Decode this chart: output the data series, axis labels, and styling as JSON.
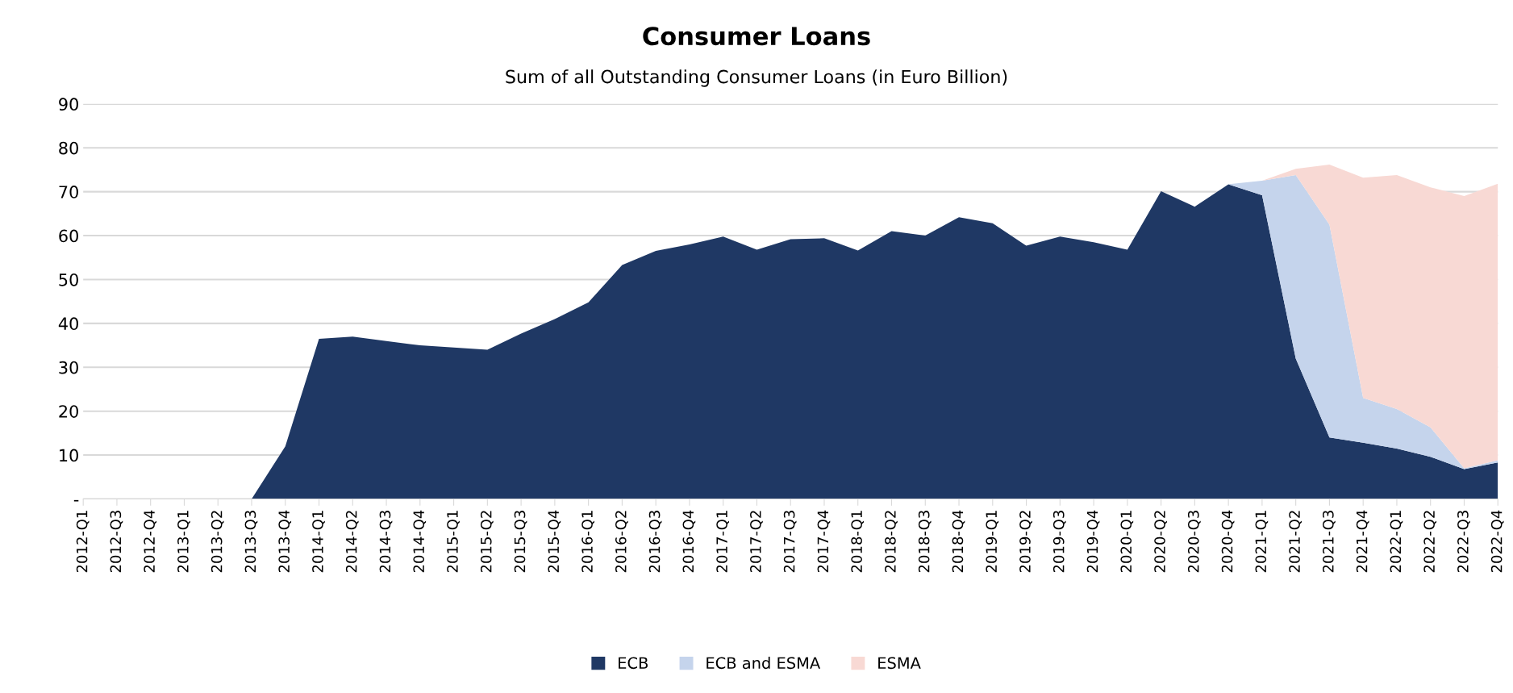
{
  "chart_data": {
    "type": "area",
    "stacked": true,
    "title": "Consumer Loans",
    "subtitle": "Sum of all Outstanding Consumer Loans (in Euro Billion)",
    "categories": [
      "2012-Q1",
      "2012-Q3",
      "2012-Q4",
      "2013-Q1",
      "2013-Q2",
      "2013-Q3",
      "2013-Q4",
      "2014-Q1",
      "2014-Q2",
      "2014-Q3",
      "2014-Q4",
      "2015-Q1",
      "2015-Q2",
      "2015-Q3",
      "2015-Q4",
      "2016-Q1",
      "2016-Q2",
      "2016-Q3",
      "2016-Q4",
      "2017-Q1",
      "2017-Q2",
      "2017-Q3",
      "2017-Q4",
      "2018-Q1",
      "2018-Q2",
      "2018-Q3",
      "2018-Q4",
      "2019-Q1",
      "2019-Q2",
      "2019-Q3",
      "2019-Q4",
      "2020-Q1",
      "2020-Q2",
      "2020-Q3",
      "2020-Q4",
      "2021-Q1",
      "2021-Q2",
      "2021-Q3",
      "2021-Q4",
      "2022-Q1",
      "2022-Q2",
      "2022-Q3",
      "2022-Q4"
    ],
    "series": [
      {
        "name": "ECB",
        "color": "#1f3864",
        "values": [
          0,
          0,
          0,
          0,
          0,
          0,
          12,
          36.5,
          37,
          36,
          35,
          34.5,
          34,
          37.7,
          41,
          44.8,
          53.3,
          56.5,
          58,
          59.8,
          56.8,
          59.2,
          59.4,
          56.6,
          61,
          60,
          64.2,
          62.8,
          57.7,
          59.8,
          58.5,
          56.8,
          70.1,
          66.6,
          71.7,
          69.2,
          32,
          14,
          12.8,
          11.5,
          9.6,
          6.8,
          8.3
        ]
      },
      {
        "name": "ECB and ESMA",
        "color": "#c5d4ec",
        "values": [
          0,
          0,
          0,
          0,
          0,
          0,
          0,
          0,
          0,
          0,
          0,
          0,
          0,
          0,
          0,
          0,
          0,
          0,
          0,
          0,
          0,
          0,
          0,
          0,
          0,
          0,
          0,
          0,
          0,
          0,
          0,
          0,
          0,
          0,
          0,
          3.3,
          41.8,
          48.5,
          10.2,
          9,
          6.7,
          0.2,
          0.5
        ]
      },
      {
        "name": "ESMA",
        "color": "#f8d9d4",
        "values": [
          0,
          0,
          0,
          0,
          0,
          0,
          0,
          0,
          0,
          0,
          0,
          0,
          0,
          0,
          0,
          0,
          0,
          0,
          0,
          0,
          0,
          0,
          0,
          0,
          0,
          0,
          0,
          0,
          0,
          0,
          0,
          0,
          0,
          0,
          0,
          0,
          1.4,
          13.7,
          50.2,
          53.3,
          54.7,
          62,
          63
        ]
      }
    ],
    "ylim": [
      0,
      90
    ],
    "yticks": [
      {
        "value": 0,
        "label": "-"
      },
      10,
      20,
      30,
      40,
      50,
      60,
      70,
      80,
      90
    ],
    "grid": "y",
    "legend": "bottom"
  }
}
